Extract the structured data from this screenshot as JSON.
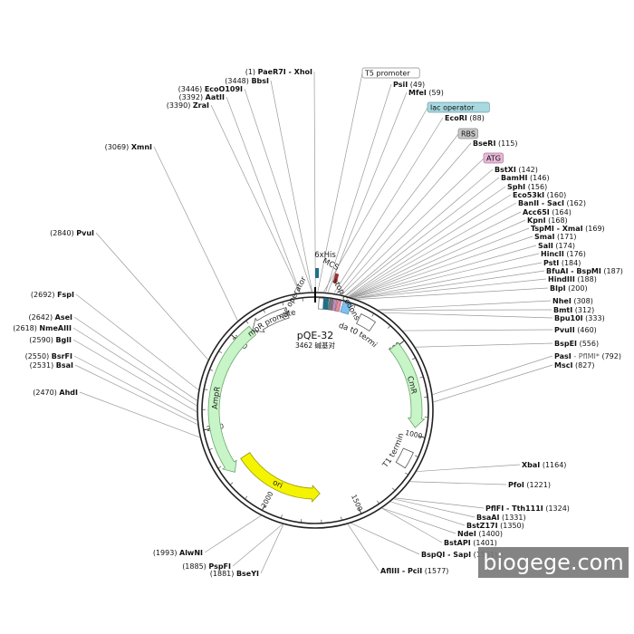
{
  "plasmid": {
    "name": "pQE-32",
    "size_label": "3462 碱基对",
    "total_bp": 3462
  },
  "tick_labels": [
    {
      "pos": 500,
      "text": "500"
    },
    {
      "pos": 1000,
      "text": "1000"
    },
    {
      "pos": 1500,
      "text": "1500"
    },
    {
      "pos": 2000,
      "text": "2000"
    },
    {
      "pos": 2500,
      "text": "2500"
    },
    {
      "pos": 3000,
      "text": "3000"
    }
  ],
  "features": [
    {
      "name": "AmpR",
      "start": 2235,
      "end": 3095,
      "dir": "ccw",
      "color": "#c8f5c8",
      "stroke": "#6aa56a",
      "r": 112
    },
    {
      "name": "AmpR promoter",
      "start": 3095,
      "end": 3310,
      "dir": "ccw",
      "color": "#ffffff",
      "stroke": "#555555",
      "r": 112
    },
    {
      "name": "ori",
      "start": 1700,
      "end": 2280,
      "dir": "ccw",
      "color": "#f4f400",
      "stroke": "#9a9a00",
      "r": 92
    },
    {
      "name": "CmR",
      "start": 490,
      "end": 960,
      "dir": "cw",
      "color": "#c8f5c8",
      "stroke": "#6aa56a",
      "r": 112
    },
    {
      "name": "rrnB T1 terminator",
      "start": 1090,
      "end": 1180,
      "dir": "none",
      "color": "#ffffff",
      "stroke": "#555555",
      "r": 112
    },
    {
      "name": "lambda t0 terminator",
      "start": 245,
      "end": 330,
      "dir": "none",
      "color": "#ffffff",
      "stroke": "#555555",
      "r": 112
    }
  ],
  "inner_features": [
    {
      "name": "6xHis",
      "pos": 60
    },
    {
      "name": "MCS",
      "pos": 150
    },
    {
      "name": "lac operator",
      "pos": 3400
    },
    {
      "name": "stop codons",
      "pos": 190
    }
  ],
  "boxed_labels": [
    {
      "text": "T5 promoter",
      "fill": "#ffffff",
      "stroke": "#888888"
    },
    {
      "text": "lac operator",
      "fill": "#a8d8e0",
      "stroke": "#6aa0aa"
    },
    {
      "text": "RBS",
      "fill": "#c8c8c8",
      "stroke": "#888888"
    },
    {
      "text": "ATG",
      "fill": "#e8b8d8",
      "stroke": "#aa7799"
    }
  ],
  "sites": [
    {
      "num": "(1)",
      "name": "PaeR7I - XhoI",
      "pos": 1,
      "ext": ""
    },
    {
      "num": "(3448)",
      "name": "BbsI",
      "pos": 3448,
      "ext": ""
    },
    {
      "num": "(3446)",
      "name": "EcoO109I",
      "pos": 3446,
      "ext": ""
    },
    {
      "num": "(3392)",
      "name": "AatII",
      "pos": 3392,
      "ext": ""
    },
    {
      "num": "(3390)",
      "name": "ZraI",
      "pos": 3390,
      "ext": ""
    },
    {
      "num": "(3069)",
      "name": "XmnI",
      "pos": 3069,
      "ext": ""
    },
    {
      "num": "(2840)",
      "name": "PvuI",
      "pos": 2840,
      "ext": ""
    },
    {
      "num": "(2692)",
      "name": "FspI",
      "pos": 2692,
      "ext": ""
    },
    {
      "num": "(2642)",
      "name": "AseI",
      "pos": 2642,
      "ext": ""
    },
    {
      "num": "(2618)",
      "name": "NmeAIII",
      "pos": 2618,
      "ext": ""
    },
    {
      "num": "(2590)",
      "name": "BglI",
      "pos": 2590,
      "ext": ""
    },
    {
      "num": "(2550)",
      "name": "BsrFI",
      "pos": 2550,
      "ext": ""
    },
    {
      "num": "(2531)",
      "name": "BsaI",
      "pos": 2531,
      "ext": ""
    },
    {
      "num": "(2470)",
      "name": "AhdI",
      "pos": 2470,
      "ext": ""
    },
    {
      "num": "(1993)",
      "name": "AlwNI",
      "pos": 1993,
      "ext": ""
    },
    {
      "num": "(1885)",
      "name": "PspFI",
      "pos": 1885,
      "ext": ""
    },
    {
      "num": "(1881)",
      "name": "BseYI",
      "pos": 1881,
      "ext": ""
    },
    {
      "num": "(49)",
      "name": "PsiI",
      "pos": 49,
      "ext": ""
    },
    {
      "num": "(59)",
      "name": "MfeI",
      "pos": 59,
      "ext": ""
    },
    {
      "num": "(88)",
      "name": "EcoRI",
      "pos": 88,
      "ext": ""
    },
    {
      "num": "(115)",
      "name": "BseRI",
      "pos": 115,
      "ext": ""
    },
    {
      "num": "(142)",
      "name": "BstXI",
      "pos": 142,
      "ext": ""
    },
    {
      "num": "(146)",
      "name": "BamHI",
      "pos": 146,
      "ext": ""
    },
    {
      "num": "(156)",
      "name": "SphI",
      "pos": 156,
      "ext": ""
    },
    {
      "num": "(160)",
      "name": "Eco53kI",
      "pos": 160,
      "ext": ""
    },
    {
      "num": "(162)",
      "name": "BanII - SacI",
      "pos": 162,
      "ext": ""
    },
    {
      "num": "(164)",
      "name": "Acc65I",
      "pos": 164,
      "ext": ""
    },
    {
      "num": "(168)",
      "name": "KpnI",
      "pos": 168,
      "ext": ""
    },
    {
      "num": "(169)",
      "name": "TspMI - XmaI",
      "pos": 169,
      "ext": ""
    },
    {
      "num": "(171)",
      "name": "SmaI",
      "pos": 171,
      "ext": ""
    },
    {
      "num": "(174)",
      "name": "SalI",
      "pos": 174,
      "ext": ""
    },
    {
      "num": "(176)",
      "name": "HincII",
      "pos": 176,
      "ext": ""
    },
    {
      "num": "(184)",
      "name": "PstI",
      "pos": 184,
      "ext": ""
    },
    {
      "num": "(187)",
      "name": "BfuAI - BspMI",
      "pos": 187,
      "ext": ""
    },
    {
      "num": "(188)",
      "name": "HindIII",
      "pos": 188,
      "ext": ""
    },
    {
      "num": "(200)",
      "name": "BlpI",
      "pos": 200,
      "ext": ""
    },
    {
      "num": "(308)",
      "name": "NheI",
      "pos": 308,
      "ext": ""
    },
    {
      "num": "(312)",
      "name": "BmtI",
      "pos": 312,
      "ext": ""
    },
    {
      "num": "(333)",
      "name": "Bpu10I",
      "pos": 333,
      "ext": ""
    },
    {
      "num": "(460)",
      "name": "PvuII",
      "pos": 460,
      "ext": ""
    },
    {
      "num": "(556)",
      "name": "BspEI",
      "pos": 556,
      "ext": ""
    },
    {
      "num": "(792)",
      "name": "PasI",
      "pos": 792,
      "ext": "PflMI*"
    },
    {
      "num": "(827)",
      "name": "MscI",
      "pos": 827,
      "ext": ""
    },
    {
      "num": "(1164)",
      "name": "XbaI",
      "pos": 1164,
      "ext": ""
    },
    {
      "num": "(1221)",
      "name": "PfoI",
      "pos": 1221,
      "ext": ""
    },
    {
      "num": "(1324)",
      "name": "PflFI - Tth111I",
      "pos": 1324,
      "ext": ""
    },
    {
      "num": "(1331)",
      "name": "BsaAI",
      "pos": 1331,
      "ext": ""
    },
    {
      "num": "(1350)",
      "name": "BstZ17I",
      "pos": 1350,
      "ext": ""
    },
    {
      "num": "(1400)",
      "name": "NdeI",
      "pos": 1400,
      "ext": ""
    },
    {
      "num": "(1401)",
      "name": "BstAPI",
      "pos": 1401,
      "ext": ""
    },
    {
      "num": "(1561)",
      "name": "BspQI - SapI",
      "pos": 1561,
      "ext": ""
    },
    {
      "num": "(1577)",
      "name": "AflIII - PciI",
      "pos": 1577,
      "ext": ""
    }
  ],
  "watermark": "biogege.com"
}
